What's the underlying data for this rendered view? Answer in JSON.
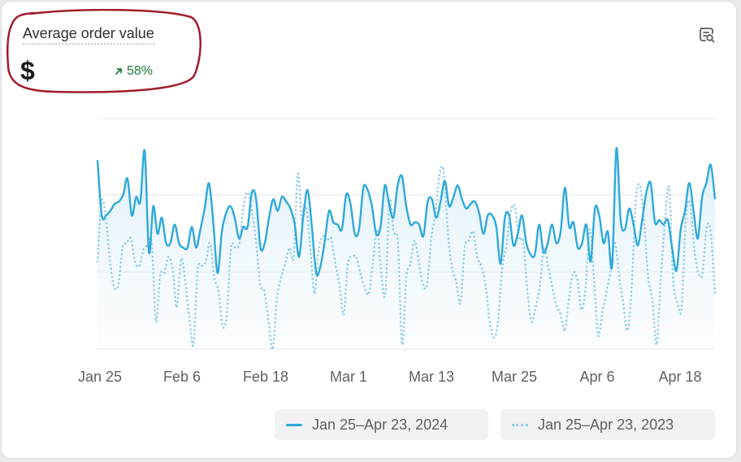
{
  "metric": {
    "title": "Average order value",
    "value": "$",
    "change": "58%"
  },
  "icons": {
    "change_direction": "arrow-up-right-icon",
    "explore": "explore-data-icon"
  },
  "colors": {
    "current_series": "#2fa9db",
    "previous_series": "#8fcbe8",
    "positive_change": "#1e7d3c",
    "highlight_ring": "#a01d2b"
  },
  "chart_data": {
    "type": "line",
    "x_tick_labels": [
      "Jan 25",
      "Feb 6",
      "Feb 18",
      "Mar 1",
      "Mar 13",
      "Mar 25",
      "Apr 6",
      "Apr 18"
    ],
    "x_start": "Jan 25",
    "x_end": "Apr 23",
    "y_tick_labels": [],
    "grid": true,
    "legend_position": "bottom-right",
    "series": [
      {
        "name": "Jan 25–Apr 23, 2024",
        "style": "solid",
        "values": [
          0.82,
          0.58,
          0.58,
          0.6,
          0.63,
          0.64,
          0.67,
          0.74,
          0.58,
          0.66,
          0.64,
          0.86,
          0.42,
          0.62,
          0.5,
          0.57,
          0.46,
          0.46,
          0.54,
          0.46,
          0.44,
          0.44,
          0.53,
          0.44,
          0.52,
          0.61,
          0.72,
          0.55,
          0.33,
          0.51,
          0.59,
          0.62,
          0.57,
          0.48,
          0.53,
          0.53,
          0.68,
          0.65,
          0.44,
          0.46,
          0.57,
          0.65,
          0.6,
          0.66,
          0.64,
          0.61,
          0.54,
          0.4,
          0.58,
          0.69,
          0.53,
          0.33,
          0.36,
          0.47,
          0.6,
          0.55,
          0.54,
          0.52,
          0.67,
          0.63,
          0.5,
          0.52,
          0.7,
          0.69,
          0.62,
          0.5,
          0.53,
          0.71,
          0.63,
          0.57,
          0.71,
          0.75,
          0.62,
          0.54,
          0.55,
          0.54,
          0.49,
          0.64,
          0.65,
          0.57,
          0.64,
          0.73,
          0.62,
          0.66,
          0.71,
          0.65,
          0.61,
          0.63,
          0.64,
          0.59,
          0.5,
          0.58,
          0.58,
          0.53,
          0.37,
          0.57,
          0.58,
          0.45,
          0.5,
          0.58,
          0.46,
          0.41,
          0.41,
          0.54,
          0.42,
          0.46,
          0.54,
          0.46,
          0.51,
          0.7,
          0.53,
          0.55,
          0.44,
          0.46,
          0.54,
          0.38,
          0.61,
          0.58,
          0.46,
          0.51,
          0.36,
          0.87,
          0.56,
          0.52,
          0.61,
          0.54,
          0.45,
          0.56,
          0.68,
          0.72,
          0.55,
          0.56,
          0.54,
          0.56,
          0.44,
          0.34,
          0.52,
          0.6,
          0.72,
          0.6,
          0.48,
          0.66,
          0.72,
          0.8,
          0.65
        ],
        "note": "normalized to plot height (no y-axis labels shown)"
      },
      {
        "name": "Jan 25–Apr 23, 2023",
        "style": "dotted",
        "values": [
          0.38,
          0.64,
          0.57,
          0.38,
          0.27,
          0.28,
          0.44,
          0.46,
          0.48,
          0.38,
          0.36,
          0.43,
          0.45,
          0.46,
          0.12,
          0.32,
          0.33,
          0.4,
          0.35,
          0.18,
          0.39,
          0.3,
          0.14,
          0.02,
          0.34,
          0.36,
          0.38,
          0.46,
          0.31,
          0.25,
          0.1,
          0.15,
          0.44,
          0.44,
          0.46,
          0.62,
          0.68,
          0.6,
          0.47,
          0.28,
          0.25,
          0.12,
          0.0,
          0.22,
          0.31,
          0.37,
          0.44,
          0.4,
          0.76,
          0.55,
          0.62,
          0.44,
          0.24,
          0.43,
          0.49,
          0.47,
          0.48,
          0.37,
          0.28,
          0.15,
          0.37,
          0.4,
          0.4,
          0.33,
          0.27,
          0.24,
          0.37,
          0.52,
          0.33,
          0.24,
          0.64,
          0.51,
          0.46,
          0.02,
          0.31,
          0.37,
          0.47,
          0.38,
          0.28,
          0.28,
          0.48,
          0.59,
          0.76,
          0.77,
          0.5,
          0.35,
          0.29,
          0.2,
          0.44,
          0.47,
          0.51,
          0.4,
          0.36,
          0.28,
          0.12,
          0.05,
          0.12,
          0.35,
          0.45,
          0.59,
          0.62,
          0.48,
          0.47,
          0.26,
          0.12,
          0.18,
          0.27,
          0.44,
          0.36,
          0.27,
          0.19,
          0.15,
          0.08,
          0.22,
          0.33,
          0.3,
          0.17,
          0.27,
          0.52,
          0.3,
          0.06,
          0.16,
          0.25,
          0.34,
          0.46,
          0.32,
          0.2,
          0.08,
          0.26,
          0.64,
          0.71,
          0.55,
          0.31,
          0.21,
          0.02,
          0.3,
          0.55,
          0.7,
          0.3,
          0.2,
          0.18,
          0.56,
          0.64,
          0.44,
          0.33,
          0.33,
          0.53,
          0.5,
          0.24
        ],
        "note": "normalized to plot height (no y-axis labels shown)"
      }
    ]
  }
}
